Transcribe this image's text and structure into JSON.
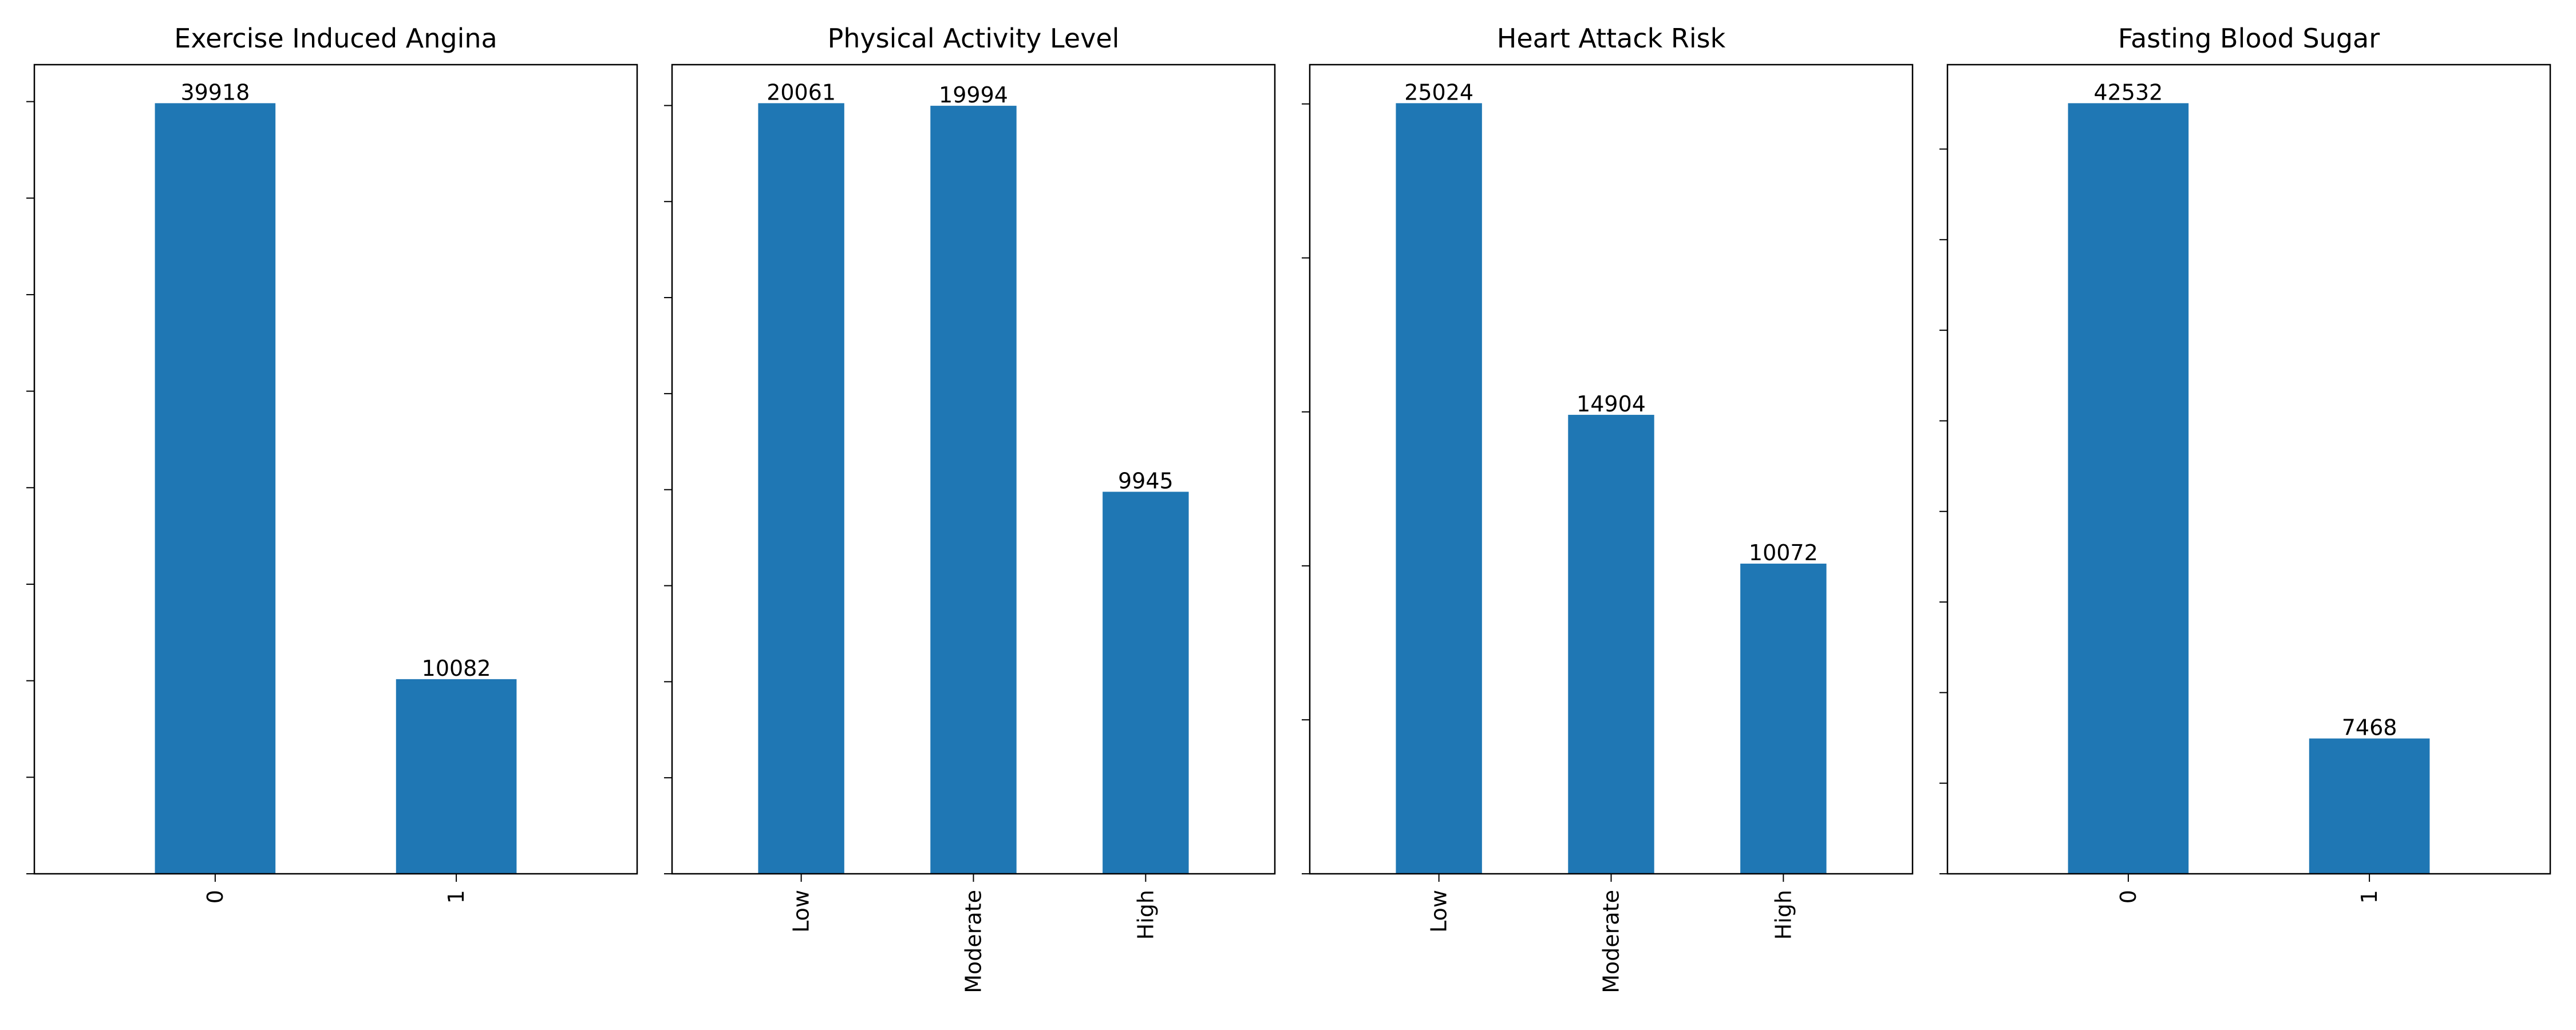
{
  "colors": {
    "bar": "#1f77b4",
    "axes": "#000000",
    "background": "#ffffff"
  },
  "chart_data": [
    {
      "type": "bar",
      "title": "Exercise Induced Angina",
      "categories": [
        "0",
        "1"
      ],
      "values": [
        39918,
        10082
      ],
      "ylim": [
        0,
        41914
      ],
      "ytick_step": 5000,
      "grid": false,
      "legend": "none"
    },
    {
      "type": "bar",
      "title": "Physical Activity Level",
      "categories": [
        "Low",
        "Moderate",
        "High"
      ],
      "values": [
        20061,
        19994,
        9945
      ],
      "ylim": [
        0,
        21064
      ],
      "ytick_step": 2500,
      "grid": false,
      "legend": "none"
    },
    {
      "type": "bar",
      "title": "Heart Attack Risk",
      "categories": [
        "Low",
        "Moderate",
        "High"
      ],
      "values": [
        25024,
        14904,
        10072
      ],
      "ylim": [
        0,
        26275
      ],
      "ytick_step": 5000,
      "grid": false,
      "legend": "none"
    },
    {
      "type": "bar",
      "title": "Fasting Blood Sugar",
      "categories": [
        "0",
        "1"
      ],
      "values": [
        42532,
        7468
      ],
      "ylim": [
        0,
        44659
      ],
      "ytick_step": 5000,
      "grid": false,
      "legend": "none"
    }
  ]
}
